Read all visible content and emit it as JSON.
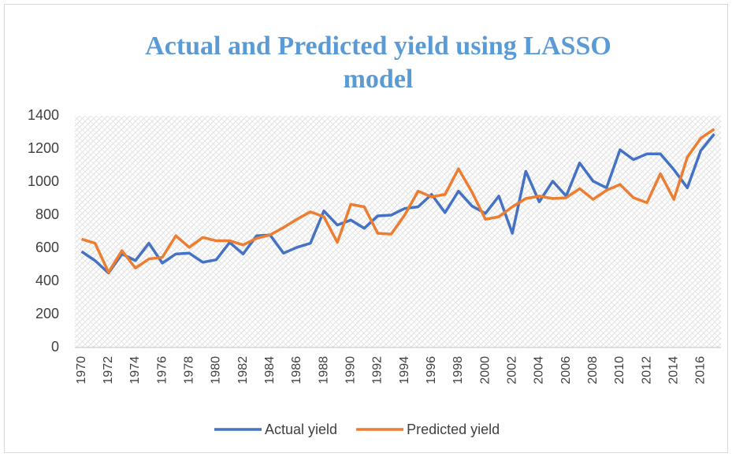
{
  "chart_data": {
    "type": "line",
    "title": "Actual and Predicted yield using LASSO model",
    "categories": [
      "1970",
      null,
      "1972",
      null,
      "1974",
      null,
      "1976",
      null,
      "1978",
      null,
      "1980",
      null,
      "1982",
      null,
      "1984",
      null,
      "1986",
      null,
      "1988",
      null,
      "1990",
      null,
      "1992",
      null,
      "1994",
      null,
      "1996",
      null,
      "1998",
      null,
      "2000",
      null,
      "2002",
      null,
      "2004",
      null,
      "2006",
      null,
      "2008",
      null,
      "2010",
      null,
      "2012",
      null,
      "2014",
      null,
      "2016",
      null
    ],
    "series": [
      {
        "name": "Actual yield",
        "color": "#4472c4",
        "values": [
          580,
          525,
          450,
          565,
          525,
          630,
          510,
          565,
          570,
          515,
          530,
          635,
          565,
          675,
          680,
          570,
          605,
          630,
          825,
          740,
          770,
          720,
          795,
          800,
          840,
          850,
          925,
          815,
          945,
          855,
          810,
          915,
          690,
          1065,
          880,
          1005,
          915,
          1115,
          1005,
          965,
          1195,
          1135,
          1170,
          1170,
          1075,
          965,
          1190,
          1290
        ]
      },
      {
        "name": "Predicted yield",
        "color": "#ed7d31",
        "values": [
          655,
          630,
          455,
          585,
          480,
          535,
          545,
          675,
          605,
          665,
          645,
          645,
          620,
          660,
          680,
          725,
          775,
          820,
          790,
          635,
          865,
          850,
          690,
          685,
          800,
          945,
          910,
          925,
          1080,
          940,
          775,
          790,
          850,
          900,
          915,
          900,
          905,
          960,
          895,
          950,
          985,
          905,
          875,
          1050,
          895,
          1150,
          1265,
          1320
        ]
      }
    ],
    "ylim": [
      0,
      1400
    ],
    "yticks": [
      0,
      200,
      400,
      600,
      800,
      1000,
      1200,
      1400
    ],
    "grid": false
  }
}
